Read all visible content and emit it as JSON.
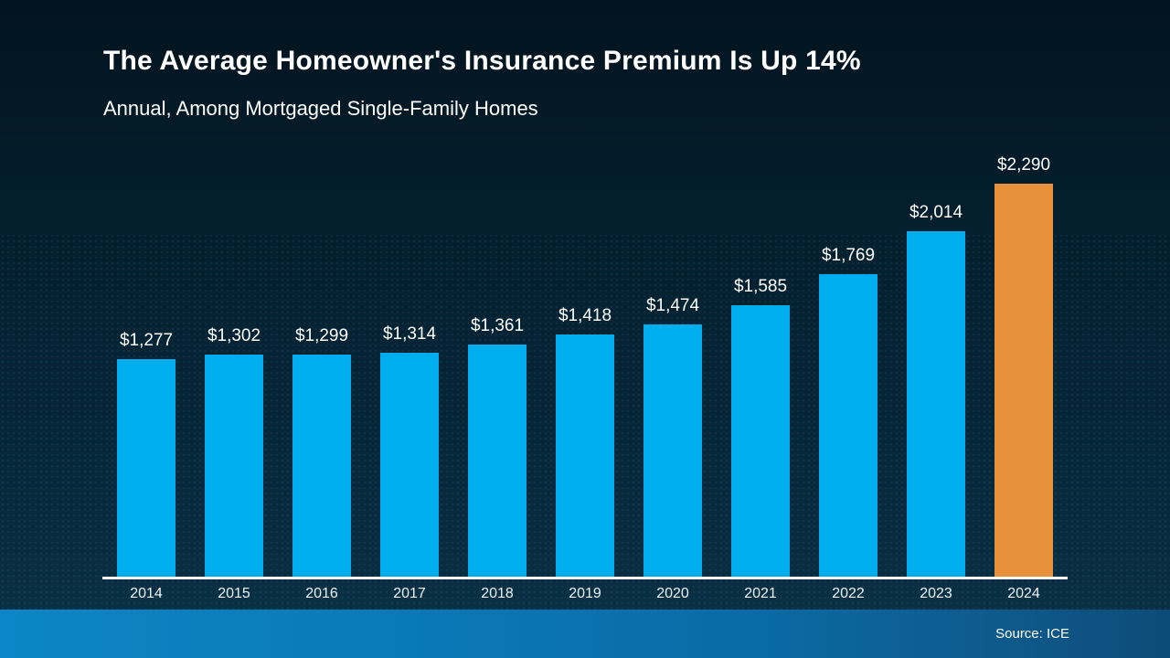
{
  "header": {
    "title": "The Average Homeowner's Insurance Premium Is Up 14%",
    "subtitle": "Annual, Among Mortgaged Single-Family Homes"
  },
  "chart_data": {
    "type": "bar",
    "title": "The Average Homeowner's Insurance Premium Is Up 14%",
    "subtitle": "Annual, Among Mortgaged Single-Family Homes",
    "categories": [
      "2014",
      "2015",
      "2016",
      "2017",
      "2018",
      "2019",
      "2020",
      "2021",
      "2022",
      "2023",
      "2024"
    ],
    "values": [
      1277,
      1302,
      1299,
      1314,
      1361,
      1418,
      1474,
      1585,
      1769,
      2014,
      2290
    ],
    "value_labels": [
      "$1,277",
      "$1,302",
      "$1,299",
      "$1,314",
      "$1,361",
      "$1,418",
      "$1,474",
      "$1,585",
      "$1,769",
      "$2,014",
      "$2,290"
    ],
    "xlabel": "",
    "ylabel": "",
    "ylim": [
      0,
      2430
    ],
    "grid": false,
    "legend": "none",
    "value_axis_visible": false,
    "highlight_index": 10,
    "bar_color": "#00aeef",
    "highlight_color": "#e8913c"
  },
  "footer": {
    "source": "Source: ICE"
  },
  "colors": {
    "background_top": "#02141f",
    "background_bottom": "#0a3045",
    "bar_blue": "#00aeef",
    "bar_orange": "#e8913c",
    "axis_line": "#ffffff",
    "text": "#ffffff",
    "footer_band_left": "#0c86c6",
    "footer_band_right": "#0e4b77"
  }
}
